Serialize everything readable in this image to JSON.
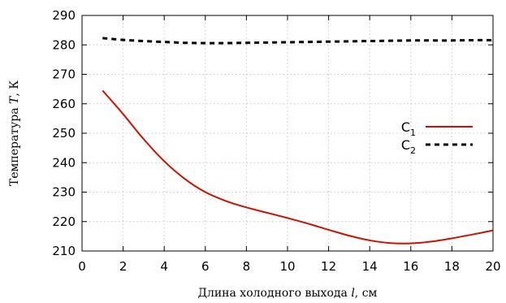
{
  "chart_data": {
    "type": "line",
    "xlabel": {
      "prefix": "Длина холодного выхода ",
      "var": "l",
      "suffix": ", см"
    },
    "ylabel": {
      "prefix": "Температура ",
      "var": "T",
      "suffix": ", К"
    },
    "xlim": [
      0,
      20
    ],
    "ylim": [
      210,
      290
    ],
    "xticks": [
      0,
      2,
      4,
      6,
      8,
      10,
      12,
      14,
      16,
      18,
      20
    ],
    "yticks": [
      210,
      220,
      230,
      240,
      250,
      260,
      270,
      280,
      290
    ],
    "grid": true,
    "legend_position": "right",
    "series": [
      {
        "name": "C",
        "sub": "1",
        "color": "#cc1100",
        "style": "solid",
        "x": [
          1,
          2,
          3,
          4,
          5,
          6,
          7,
          8,
          9,
          10,
          11,
          12,
          13,
          14,
          15,
          16,
          17,
          18,
          19,
          20
        ],
        "y": [
          264.5,
          256.5,
          248,
          240.5,
          234.5,
          230,
          227,
          224.8,
          223,
          221.2,
          219.3,
          217.2,
          215.2,
          213.6,
          212.7,
          212.6,
          213.2,
          214.3,
          215.6,
          217
        ]
      },
      {
        "name": "C",
        "sub": "2",
        "color": "#000000",
        "style": "dashed",
        "x": [
          1,
          2,
          3,
          4,
          5,
          6,
          7,
          8,
          9,
          10,
          11,
          12,
          13,
          14,
          15,
          16,
          17,
          18,
          19,
          20
        ],
        "y": [
          282.3,
          281.7,
          281.3,
          281,
          280.7,
          280.6,
          280.6,
          280.7,
          280.8,
          280.9,
          281,
          281.1,
          281.2,
          281.3,
          281.4,
          281.5,
          281.5,
          281.5,
          281.6,
          281.6
        ]
      }
    ]
  }
}
